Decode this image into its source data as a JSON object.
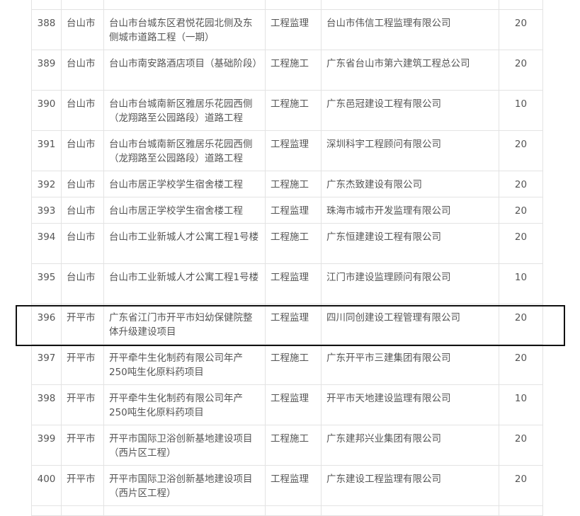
{
  "rows": [
    {
      "no": "388",
      "city": "台山市",
      "project": "台山市台城东区君悦花园北侧及东侧城市道路工程（一期）",
      "type": "工程监理",
      "company": "台山市伟信工程监理有限公司",
      "score": "20"
    },
    {
      "no": "389",
      "city": "台山市",
      "project": "台山市南安路酒店项目（基础阶段）",
      "type": "工程施工",
      "company": "广东省台山市第六建筑工程总公司",
      "score": "20"
    },
    {
      "no": "390",
      "city": "台山市",
      "project": "台山市台城南新区雅居乐花园西侧（龙翔路至公园路段）道路工程",
      "type": "工程施工",
      "company": "广东邑冠建设工程有限公司",
      "score": "10"
    },
    {
      "no": "391",
      "city": "台山市",
      "project": "台山市台城南新区雅居乐花园西侧（龙翔路至公园路段）道路工程",
      "type": "工程监理",
      "company": "深圳科宇工程顾问有限公司",
      "score": "20"
    },
    {
      "no": "392",
      "city": "台山市",
      "project": "台山市居正学校学生宿舍楼工程",
      "type": "工程施工",
      "company": "广东杰致建设有限公司",
      "score": "20"
    },
    {
      "no": "393",
      "city": "台山市",
      "project": "台山市居正学校学生宿舍楼工程",
      "type": "工程监理",
      "company": "珠海市城市开发监理有限公司",
      "score": "20"
    },
    {
      "no": "394",
      "city": "台山市",
      "project": "台山市工业新城人才公寓工程1号楼",
      "type": "工程施工",
      "company": "广东恒建建设工程有限公司",
      "score": "20"
    },
    {
      "no": "395",
      "city": "台山市",
      "project": "台山市工业新城人才公寓工程1号楼",
      "type": "工程监理",
      "company": "江门市建设监理顾问有限公司",
      "score": "10"
    },
    {
      "no": "396",
      "city": "开平市",
      "project": "广东省江门市开平市妇幼保健院整体升级建设项目",
      "type": "工程监理",
      "company": "四川同创建设工程管理有限公司",
      "score": "20",
      "highlighted": true
    },
    {
      "no": "397",
      "city": "开平市",
      "project": "开平牵牛生化制药有限公司年产250吨生化原料药项目",
      "type": "工程施工",
      "company": "广东开平市三建集团有限公司",
      "score": "20"
    },
    {
      "no": "398",
      "city": "开平市",
      "project": "开平牵牛生化制药有限公司年产250吨生化原料药项目",
      "type": "工程监理",
      "company": "开平市天地建设监理有限公司",
      "score": "10"
    },
    {
      "no": "399",
      "city": "开平市",
      "project": "开平市国际卫浴创新基地建设项目（西片区工程）",
      "type": "工程施工",
      "company": "广东建邦兴业集团有限公司",
      "score": "20"
    },
    {
      "no": "400",
      "city": "开平市",
      "project": "开平市国际卫浴创新基地建设项目（西片区工程）",
      "type": "工程监理",
      "company": "广东建设工程监理有限公司",
      "score": "20"
    }
  ]
}
